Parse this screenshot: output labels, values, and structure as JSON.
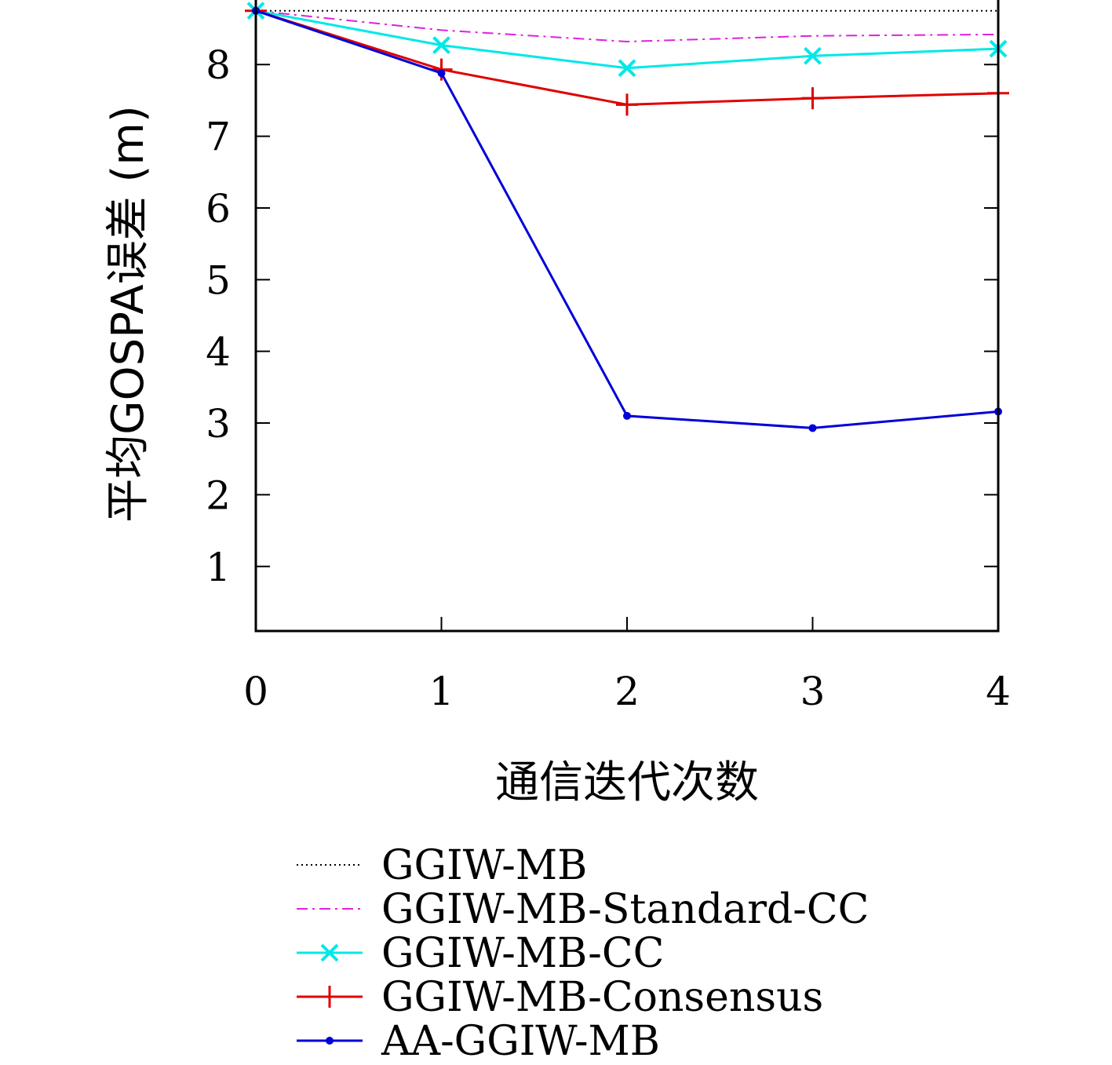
{
  "chart_data": {
    "type": "line",
    "xlabel": "通信迭代次数",
    "ylabel": "平均GOSPA误差 (m)",
    "x": [
      0,
      1,
      2,
      3,
      4
    ],
    "x_ticks": [
      "0",
      "1",
      "2",
      "3",
      "4"
    ],
    "y_ticks": [
      "1",
      "2",
      "3",
      "4",
      "5",
      "6",
      "7",
      "8"
    ],
    "xlim": [
      0,
      4
    ],
    "ylim": [
      0.1,
      8.9
    ],
    "grid": false,
    "legend_position": "bottom",
    "series": [
      {
        "name": "GGIW-MB",
        "values": [
          8.75,
          8.75,
          8.75,
          8.75,
          8.75
        ],
        "color": "#000000",
        "style": "dotted",
        "marker": "none"
      },
      {
        "name": "GGIW-MB-Standard-CC",
        "values": [
          8.75,
          8.48,
          8.32,
          8.4,
          8.42
        ],
        "color": "#e020e0",
        "style": "dashdot",
        "marker": "none"
      },
      {
        "name": "GGIW-MB-CC",
        "values": [
          8.75,
          8.27,
          7.95,
          8.12,
          8.22
        ],
        "color": "#00e8e8",
        "style": "solid",
        "marker": "x"
      },
      {
        "name": "GGIW-MB-Consensus",
        "values": [
          8.75,
          7.93,
          7.44,
          7.53,
          7.6
        ],
        "color": "#e00000",
        "style": "solid",
        "marker": "plus"
      },
      {
        "name": "AA-GGIW-MB",
        "values": [
          8.75,
          7.88,
          3.1,
          2.93,
          3.16
        ],
        "color": "#0000d8",
        "style": "solid",
        "marker": "dot"
      }
    ]
  }
}
